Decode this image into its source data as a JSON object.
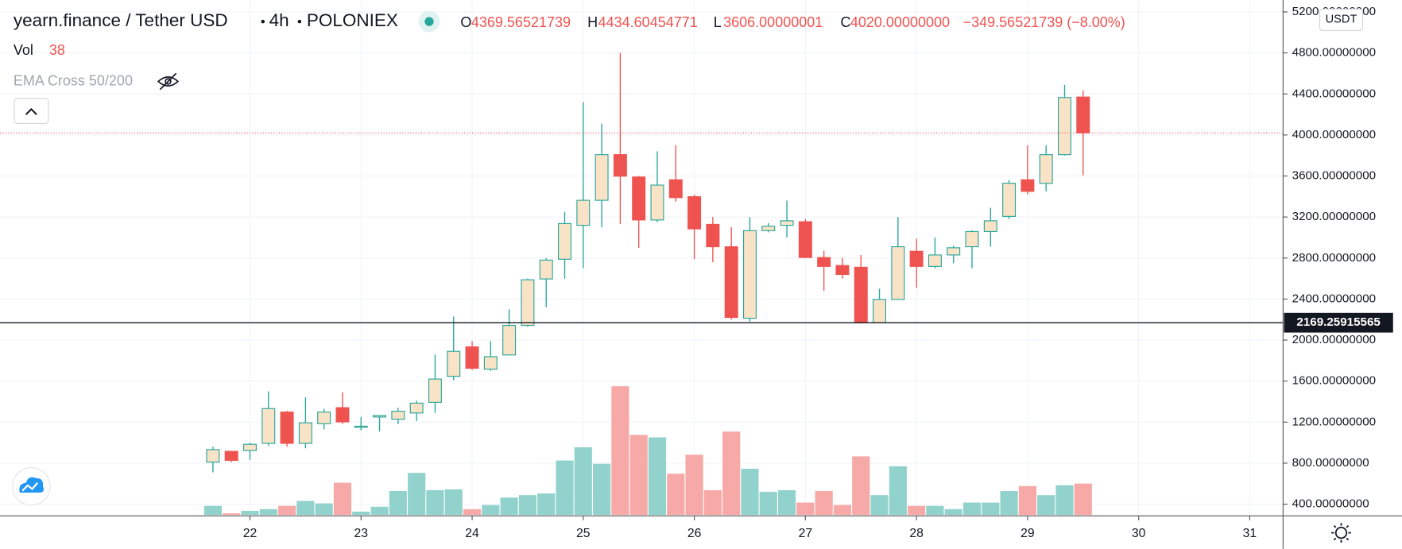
{
  "chart_data": {
    "type": "candlestick",
    "title": "yearn.finance / Tether USD",
    "interval": "4h",
    "exchange": "POLONIEX",
    "legend": [
      {
        "label": "O",
        "value": "4369.56521739"
      },
      {
        "label": "H",
        "value": "4434.60454771"
      },
      {
        "label": "L",
        "value": "3606.00000001"
      },
      {
        "label": "C",
        "value": "4020.00000000"
      }
    ],
    "change": "−349.56521739 (−8.00%)",
    "volume_label": "Vol",
    "indicator": "EMA Cross 50/200",
    "currency": "USDT",
    "up_color": "#26a69a",
    "up_fill": "#f8e3c7",
    "down_color": "#ef5350",
    "volume_up_color": "#92d2cc",
    "volume_down_color": "#f7a9a7",
    "open": [
      810,
      915,
      923,
      993,
      1298,
      993,
      1184,
      1341,
      1150,
      1250,
      1228,
      1289,
      1393,
      1646,
      1934,
      1716,
      1855,
      2143,
      2596,
      2788,
      3119,
      3363,
      3808,
      3590,
      3171,
      3563,
      3398,
      3128,
      2910,
      2213,
      3067,
      3119,
      3154,
      2805,
      2727,
      2710,
      2170,
      2396,
      2866,
      2718,
      2830,
      2910,
      3058,
      3206,
      3563,
      3528,
      3808,
      4369.56521739
    ],
    "high": [
      960,
      920,
      1000,
      1500,
      1310,
      1440,
      1330,
      1490,
      1250,
      1265,
      1340,
      1410,
      1860,
      2230,
      1990,
      1990,
      2300,
      2600,
      2800,
      3250,
      4320,
      4110,
      4800,
      3600,
      3840,
      3900,
      3420,
      3200,
      3100,
      3200,
      3140,
      3360,
      3180,
      2870,
      2800,
      2830,
      2500,
      3200,
      2990,
      3000,
      2920,
      3070,
      3290,
      3560,
      3900,
      3900,
      4490,
      4434.60454771
    ],
    "low": [
      710,
      810,
      830,
      970,
      960,
      945,
      1130,
      1180,
      1120,
      1110,
      1180,
      1210,
      1290,
      1610,
      1710,
      1700,
      1850,
      2130,
      2320,
      2600,
      2700,
      3100,
      3130,
      2900,
      3150,
      3350,
      2790,
      2760,
      2200,
      2180,
      3050,
      3000,
      2800,
      2480,
      2600,
      2160,
      2170,
      2400,
      2510,
      2700,
      2750,
      2700,
      2910,
      3180,
      3420,
      3450,
      3800,
      3606.00000001
    ],
    "close": [
      932,
      827,
      984,
      1332,
      993,
      1193,
      1298,
      1202,
      1160,
      1265,
      1306,
      1385,
      1620,
      1890,
      1725,
      1838,
      2143,
      2588,
      2780,
      3136,
      3363,
      3808,
      3598,
      3171,
      3511,
      3389,
      3084,
      2910,
      2221,
      3067,
      3110,
      3163,
      2805,
      2718,
      2640,
      2170,
      2396,
      2910,
      2718,
      2830,
      2900,
      3058,
      3163,
      3529,
      3450,
      3808,
      4365,
      4020
    ],
    "volume": [
      11,
      2,
      5,
      7,
      11,
      17,
      14,
      39,
      4,
      10,
      29,
      51,
      30,
      31,
      7,
      12,
      21,
      24,
      26,
      66,
      82,
      62,
      156,
      97,
      94,
      50,
      73,
      30,
      101,
      56,
      28,
      30,
      15,
      29,
      12,
      71,
      24,
      59,
      11,
      11,
      7,
      15,
      15,
      29,
      35,
      24,
      36,
      38
    ],
    "ylim": [
      295,
      5315
    ],
    "yticks": [
      {
        "value": 400,
        "label": "400.00000000"
      },
      {
        "value": 800,
        "label": "800.00000000"
      },
      {
        "value": 1200,
        "label": "1200.00000000"
      },
      {
        "value": 1600,
        "label": "1600.00000000"
      },
      {
        "value": 2000,
        "label": "2000.00000000"
      },
      {
        "value": 2400,
        "label": "2400.00000000"
      },
      {
        "value": 2800,
        "label": "2800.00000000"
      },
      {
        "value": 3200,
        "label": "3200.00000000"
      },
      {
        "value": 3600,
        "label": "3600.00000000"
      },
      {
        "value": 4000,
        "label": "4000.00000000"
      },
      {
        "value": 4400,
        "label": "4400.00000000"
      },
      {
        "value": 4800,
        "label": "4800.00000000"
      },
      {
        "value": 5200,
        "label": "5200.00000000"
      }
    ],
    "xlim": [
      -11.5,
      57.8
    ],
    "xticks": [
      {
        "value": 2,
        "label": "22"
      },
      {
        "value": 8,
        "label": "23"
      },
      {
        "value": 14,
        "label": "24"
      },
      {
        "value": 20,
        "label": "25"
      },
      {
        "value": 26,
        "label": "26"
      },
      {
        "value": 32,
        "label": "27"
      },
      {
        "value": 38,
        "label": "28"
      },
      {
        "value": 44,
        "label": "29"
      },
      {
        "value": 50,
        "label": "30"
      },
      {
        "value": 56,
        "label": "31"
      }
    ],
    "grid": true,
    "price_line": 2169.25915565
  }
}
